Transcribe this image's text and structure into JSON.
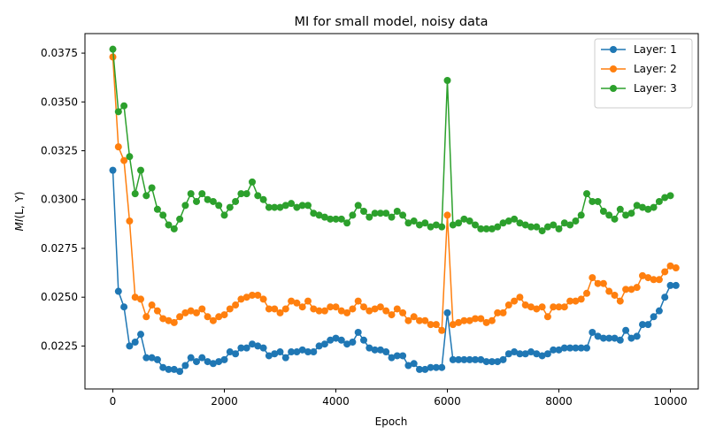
{
  "chart_data": {
    "type": "line",
    "title": "MI for small model, noisy data",
    "xlabel": "Epoch",
    "ylabel_prefix": "MI",
    "ylabel_args": "(L, Y)",
    "xlim": [
      -500,
      10500
    ],
    "ylim": [
      0.0203,
      0.0385
    ],
    "xticks": [
      0,
      2000,
      4000,
      6000,
      8000,
      10000
    ],
    "xtick_labels": [
      "0",
      "2000",
      "4000",
      "6000",
      "8000",
      "10000"
    ],
    "yticks": [
      0.0225,
      0.025,
      0.0275,
      0.03,
      0.0325,
      0.035,
      0.0375
    ],
    "ytick_labels": [
      "0.0225",
      "0.0250",
      "0.0275",
      "0.0300",
      "0.0325",
      "0.0350",
      "0.0375"
    ],
    "grid": false,
    "legend_position": "top-right",
    "x_start": 0,
    "x_step": 100,
    "series": [
      {
        "name": "Layer: 1",
        "color": "#1f77b4",
        "values": [
          0.0315,
          0.0253,
          0.0245,
          0.0225,
          0.0227,
          0.0231,
          0.0219,
          0.0219,
          0.0218,
          0.0214,
          0.0213,
          0.0213,
          0.0212,
          0.0215,
          0.0219,
          0.0217,
          0.0219,
          0.0217,
          0.0216,
          0.0217,
          0.0218,
          0.0222,
          0.0221,
          0.0224,
          0.0224,
          0.0226,
          0.0225,
          0.0224,
          0.022,
          0.0221,
          0.0222,
          0.0219,
          0.0222,
          0.0222,
          0.0223,
          0.0222,
          0.0222,
          0.0225,
          0.0226,
          0.0228,
          0.0229,
          0.0228,
          0.0226,
          0.0227,
          0.0232,
          0.0228,
          0.0224,
          0.0223,
          0.0223,
          0.0222,
          0.0219,
          0.022,
          0.022,
          0.0215,
          0.0216,
          0.0213,
          0.0213,
          0.0214,
          0.0214,
          0.0214,
          0.0242,
          0.0218,
          0.0218,
          0.0218,
          0.0218,
          0.0218,
          0.0218,
          0.0217,
          0.0217,
          0.0217,
          0.0218,
          0.0221,
          0.0222,
          0.0221,
          0.0221,
          0.0222,
          0.0221,
          0.022,
          0.0221,
          0.0223,
          0.0223,
          0.0224,
          0.0224,
          0.0224,
          0.0224,
          0.0224,
          0.0232,
          0.023,
          0.0229,
          0.0229,
          0.0229,
          0.0228,
          0.0233,
          0.0229,
          0.023,
          0.0236,
          0.0236,
          0.024,
          0.0243,
          0.025,
          0.0256,
          0.0256
        ]
      },
      {
        "name": "Layer: 2",
        "color": "#ff7f0e",
        "values": [
          0.0373,
          0.0327,
          0.032,
          0.0289,
          0.025,
          0.0249,
          0.024,
          0.0246,
          0.0243,
          0.0239,
          0.0238,
          0.0237,
          0.024,
          0.0242,
          0.0243,
          0.0242,
          0.0244,
          0.024,
          0.0238,
          0.024,
          0.0241,
          0.0244,
          0.0246,
          0.0249,
          0.025,
          0.0251,
          0.0251,
          0.0249,
          0.0244,
          0.0244,
          0.0242,
          0.0244,
          0.0248,
          0.0247,
          0.0245,
          0.0248,
          0.0244,
          0.0243,
          0.0243,
          0.0245,
          0.0245,
          0.0243,
          0.0242,
          0.0244,
          0.0248,
          0.0245,
          0.0243,
          0.0244,
          0.0245,
          0.0243,
          0.0241,
          0.0244,
          0.0242,
          0.0238,
          0.024,
          0.0238,
          0.0238,
          0.0236,
          0.0236,
          0.0233,
          0.0292,
          0.0236,
          0.0237,
          0.0238,
          0.0238,
          0.0239,
          0.0239,
          0.0237,
          0.0238,
          0.0242,
          0.0242,
          0.0246,
          0.0248,
          0.025,
          0.0246,
          0.0245,
          0.0244,
          0.0245,
          0.024,
          0.0245,
          0.0245,
          0.0245,
          0.0248,
          0.0248,
          0.0249,
          0.0252,
          0.026,
          0.0257,
          0.0257,
          0.0253,
          0.0251,
          0.0248,
          0.0254,
          0.0254,
          0.0255,
          0.0261,
          0.026,
          0.0259,
          0.0259,
          0.0263,
          0.0266,
          0.0265
        ]
      },
      {
        "name": "Layer: 3",
        "color": "#2ca02c",
        "values": [
          0.0377,
          0.0345,
          0.0348,
          0.0322,
          0.0303,
          0.0315,
          0.0302,
          0.0306,
          0.0295,
          0.0292,
          0.0287,
          0.0285,
          0.029,
          0.0297,
          0.0303,
          0.0299,
          0.0303,
          0.03,
          0.0299,
          0.0297,
          0.0292,
          0.0296,
          0.0299,
          0.0303,
          0.0303,
          0.0309,
          0.0302,
          0.03,
          0.0296,
          0.0296,
          0.0296,
          0.0297,
          0.0298,
          0.0296,
          0.0297,
          0.0297,
          0.0293,
          0.0292,
          0.0291,
          0.029,
          0.029,
          0.029,
          0.0288,
          0.0292,
          0.0297,
          0.0294,
          0.0291,
          0.0293,
          0.0293,
          0.0293,
          0.0291,
          0.0294,
          0.0292,
          0.0288,
          0.0289,
          0.0287,
          0.0288,
          0.0286,
          0.0287,
          0.0286,
          0.0361,
          0.0287,
          0.0288,
          0.029,
          0.0289,
          0.0287,
          0.0285,
          0.0285,
          0.0285,
          0.0286,
          0.0288,
          0.0289,
          0.029,
          0.0288,
          0.0287,
          0.0286,
          0.0286,
          0.0284,
          0.0286,
          0.0287,
          0.0285,
          0.0288,
          0.0287,
          0.0289,
          0.0292,
          0.0303,
          0.0299,
          0.0299,
          0.0294,
          0.0292,
          0.029,
          0.0295,
          0.0292,
          0.0293,
          0.0297,
          0.0296,
          0.0295,
          0.0296,
          0.0299,
          0.0301,
          0.0302
        ]
      }
    ]
  }
}
